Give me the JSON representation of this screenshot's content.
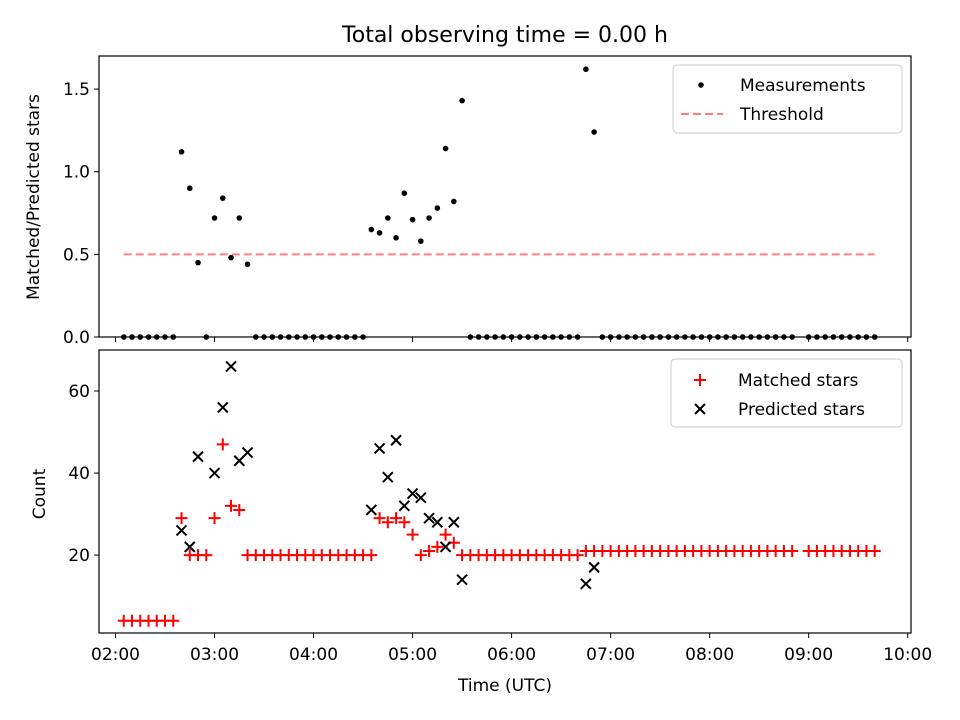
{
  "title": "Total observing time = 0.00 h",
  "xlabel": "Time (UTC)",
  "chart_data": [
    {
      "type": "scatter",
      "ylabel": "Matched/Predicted stars",
      "xlim": [
        "01:50",
        "10:02"
      ],
      "ylim": [
        0,
        1.7
      ],
      "x_ticks": [
        "02:00",
        "03:00",
        "04:00",
        "05:00",
        "06:00",
        "07:00",
        "08:00",
        "09:00",
        "10:00"
      ],
      "y_ticks": [
        "0.0",
        "0.5",
        "1.0",
        "1.5"
      ],
      "legend_position": "upper right",
      "legend": {
        "measurements": "Measurements",
        "threshold": "Threshold"
      },
      "threshold": {
        "name": "Threshold",
        "value": 0.5,
        "x_range": [
          "02:05",
          "09:40"
        ],
        "color": "#ff7f7f",
        "style": "dashed"
      },
      "series": [
        {
          "name": "Measurements",
          "marker": "dot",
          "color": "#000000",
          "points": [
            [
              "02:05",
              0
            ],
            [
              "02:10",
              0
            ],
            [
              "02:15",
              0
            ],
            [
              "02:20",
              0
            ],
            [
              "02:25",
              0
            ],
            [
              "02:30",
              0
            ],
            [
              "02:35",
              0
            ],
            [
              "02:40",
              1.12
            ],
            [
              "02:45",
              0.9
            ],
            [
              "02:50",
              0.45
            ],
            [
              "02:55",
              0
            ],
            [
              "03:00",
              0.72
            ],
            [
              "03:05",
              0.84
            ],
            [
              "03:10",
              0.48
            ],
            [
              "03:15",
              0.72
            ],
            [
              "03:20",
              0.44
            ],
            [
              "03:25",
              0
            ],
            [
              "03:30",
              0
            ],
            [
              "03:35",
              0
            ],
            [
              "03:40",
              0
            ],
            [
              "03:45",
              0
            ],
            [
              "03:50",
              0
            ],
            [
              "03:55",
              0
            ],
            [
              "04:00",
              0
            ],
            [
              "04:05",
              0
            ],
            [
              "04:10",
              0
            ],
            [
              "04:15",
              0
            ],
            [
              "04:20",
              0
            ],
            [
              "04:25",
              0
            ],
            [
              "04:30",
              0
            ],
            [
              "04:35",
              0.65
            ],
            [
              "04:40",
              0.63
            ],
            [
              "04:45",
              0.72
            ],
            [
              "04:50",
              0.6
            ],
            [
              "04:55",
              0.87
            ],
            [
              "05:00",
              0.71
            ],
            [
              "05:05",
              0.58
            ],
            [
              "05:10",
              0.72
            ],
            [
              "05:15",
              0.78
            ],
            [
              "05:20",
              1.14
            ],
            [
              "05:25",
              0.82
            ],
            [
              "05:30",
              1.43
            ],
            [
              "05:35",
              0
            ],
            [
              "05:40",
              0
            ],
            [
              "05:45",
              0
            ],
            [
              "05:50",
              0
            ],
            [
              "05:55",
              0
            ],
            [
              "06:00",
              0
            ],
            [
              "06:05",
              0
            ],
            [
              "06:10",
              0
            ],
            [
              "06:15",
              0
            ],
            [
              "06:20",
              0
            ],
            [
              "06:25",
              0
            ],
            [
              "06:30",
              0
            ],
            [
              "06:35",
              0
            ],
            [
              "06:40",
              0
            ],
            [
              "06:45",
              1.62
            ],
            [
              "06:50",
              1.24
            ],
            [
              "06:55",
              0
            ],
            [
              "07:00",
              0
            ],
            [
              "07:05",
              0
            ],
            [
              "07:10",
              0
            ],
            [
              "07:15",
              0
            ],
            [
              "07:20",
              0
            ],
            [
              "07:25",
              0
            ],
            [
              "07:30",
              0
            ],
            [
              "07:35",
              0
            ],
            [
              "07:40",
              0
            ],
            [
              "07:45",
              0
            ],
            [
              "07:50",
              0
            ],
            [
              "07:55",
              0
            ],
            [
              "08:00",
              0
            ],
            [
              "08:05",
              0
            ],
            [
              "08:10",
              0
            ],
            [
              "08:15",
              0
            ],
            [
              "08:20",
              0
            ],
            [
              "08:25",
              0
            ],
            [
              "08:30",
              0
            ],
            [
              "08:35",
              0
            ],
            [
              "08:40",
              0
            ],
            [
              "08:45",
              0
            ],
            [
              "08:50",
              0
            ],
            [
              "09:00",
              0
            ],
            [
              "09:05",
              0
            ],
            [
              "09:10",
              0
            ],
            [
              "09:15",
              0
            ],
            [
              "09:20",
              0
            ],
            [
              "09:25",
              0
            ],
            [
              "09:30",
              0
            ],
            [
              "09:35",
              0
            ],
            [
              "09:40",
              0
            ]
          ]
        }
      ]
    },
    {
      "type": "scatter",
      "ylabel": "Count",
      "xlim": [
        "01:50",
        "10:02"
      ],
      "ylim": [
        1,
        70
      ],
      "x_ticks": [
        "02:00",
        "03:00",
        "04:00",
        "05:00",
        "06:00",
        "07:00",
        "08:00",
        "09:00",
        "10:00"
      ],
      "y_ticks": [
        "20",
        "40",
        "60"
      ],
      "legend_position": "upper right",
      "series": [
        {
          "name": "Matched stars",
          "marker": "plus",
          "color": "#ff0000",
          "points": [
            [
              "02:05",
              4
            ],
            [
              "02:10",
              4
            ],
            [
              "02:15",
              4
            ],
            [
              "02:20",
              4
            ],
            [
              "02:25",
              4
            ],
            [
              "02:30",
              4
            ],
            [
              "02:35",
              4
            ],
            [
              "02:40",
              29
            ],
            [
              "02:45",
              20
            ],
            [
              "02:50",
              20
            ],
            [
              "02:55",
              20
            ],
            [
              "03:00",
              29
            ],
            [
              "03:05",
              47
            ],
            [
              "03:10",
              32
            ],
            [
              "03:15",
              31
            ],
            [
              "03:20",
              20
            ],
            [
              "03:25",
              20
            ],
            [
              "03:30",
              20
            ],
            [
              "03:35",
              20
            ],
            [
              "03:40",
              20
            ],
            [
              "03:45",
              20
            ],
            [
              "03:50",
              20
            ],
            [
              "03:55",
              20
            ],
            [
              "04:00",
              20
            ],
            [
              "04:05",
              20
            ],
            [
              "04:10",
              20
            ],
            [
              "04:15",
              20
            ],
            [
              "04:20",
              20
            ],
            [
              "04:25",
              20
            ],
            [
              "04:30",
              20
            ],
            [
              "04:35",
              20
            ],
            [
              "04:40",
              29
            ],
            [
              "04:45",
              28
            ],
            [
              "04:50",
              29
            ],
            [
              "04:55",
              28
            ],
            [
              "05:00",
              25
            ],
            [
              "05:05",
              20
            ],
            [
              "05:10",
              21
            ],
            [
              "05:15",
              22
            ],
            [
              "05:20",
              25
            ],
            [
              "05:25",
              23
            ],
            [
              "05:30",
              20
            ],
            [
              "05:35",
              20
            ],
            [
              "05:40",
              20
            ],
            [
              "05:45",
              20
            ],
            [
              "05:50",
              20
            ],
            [
              "05:55",
              20
            ],
            [
              "06:00",
              20
            ],
            [
              "06:05",
              20
            ],
            [
              "06:10",
              20
            ],
            [
              "06:15",
              20
            ],
            [
              "06:20",
              20
            ],
            [
              "06:25",
              20
            ],
            [
              "06:30",
              20
            ],
            [
              "06:35",
              20
            ],
            [
              "06:40",
              20
            ],
            [
              "06:45",
              21
            ],
            [
              "06:50",
              21
            ],
            [
              "06:55",
              21
            ],
            [
              "07:00",
              21
            ],
            [
              "07:05",
              21
            ],
            [
              "07:10",
              21
            ],
            [
              "07:15",
              21
            ],
            [
              "07:20",
              21
            ],
            [
              "07:25",
              21
            ],
            [
              "07:30",
              21
            ],
            [
              "07:35",
              21
            ],
            [
              "07:40",
              21
            ],
            [
              "07:45",
              21
            ],
            [
              "07:50",
              21
            ],
            [
              "07:55",
              21
            ],
            [
              "08:00",
              21
            ],
            [
              "08:05",
              21
            ],
            [
              "08:10",
              21
            ],
            [
              "08:15",
              21
            ],
            [
              "08:20",
              21
            ],
            [
              "08:25",
              21
            ],
            [
              "08:30",
              21
            ],
            [
              "08:35",
              21
            ],
            [
              "08:40",
              21
            ],
            [
              "08:45",
              21
            ],
            [
              "08:50",
              21
            ],
            [
              "09:00",
              21
            ],
            [
              "09:05",
              21
            ],
            [
              "09:10",
              21
            ],
            [
              "09:15",
              21
            ],
            [
              "09:20",
              21
            ],
            [
              "09:25",
              21
            ],
            [
              "09:30",
              21
            ],
            [
              "09:35",
              21
            ],
            [
              "09:40",
              21
            ]
          ]
        },
        {
          "name": "Predicted stars",
          "marker": "x",
          "color": "#000000",
          "points": [
            [
              "02:40",
              26
            ],
            [
              "02:45",
              22
            ],
            [
              "02:50",
              44
            ],
            [
              "03:00",
              40
            ],
            [
              "03:05",
              56
            ],
            [
              "03:10",
              66
            ],
            [
              "03:15",
              43
            ],
            [
              "03:20",
              45
            ],
            [
              "04:35",
              31
            ],
            [
              "04:40",
              46
            ],
            [
              "04:45",
              39
            ],
            [
              "04:50",
              48
            ],
            [
              "04:55",
              32
            ],
            [
              "05:00",
              35
            ],
            [
              "05:05",
              34
            ],
            [
              "05:10",
              29
            ],
            [
              "05:15",
              28
            ],
            [
              "05:20",
              22
            ],
            [
              "05:25",
              28
            ],
            [
              "05:30",
              14
            ],
            [
              "06:45",
              13
            ],
            [
              "06:50",
              17
            ]
          ]
        }
      ]
    }
  ]
}
